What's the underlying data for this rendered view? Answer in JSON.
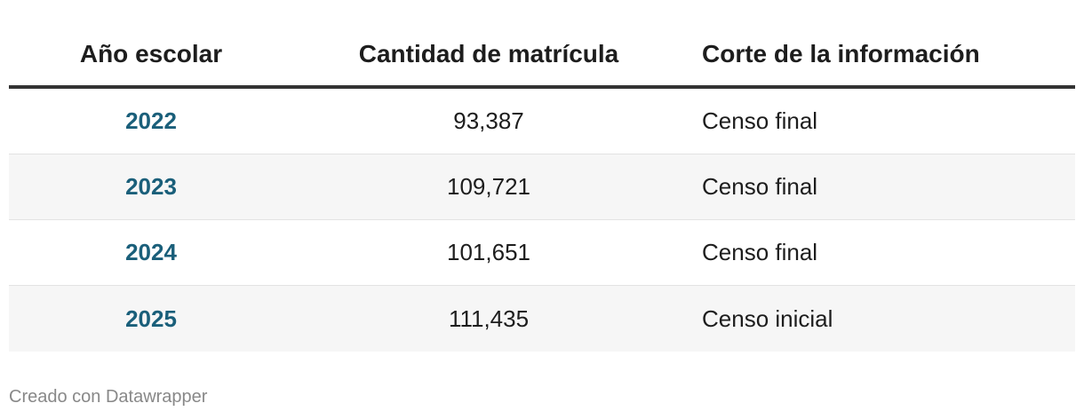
{
  "chart_data": {
    "type": "table",
    "columns": [
      "Año escolar",
      "Cantidad de matrícula",
      "Corte de la información"
    ],
    "rows": [
      {
        "year": "2022",
        "enrollment": "93,387",
        "cutoff": "Censo final"
      },
      {
        "year": "2023",
        "enrollment": "109,721",
        "cutoff": "Censo final"
      },
      {
        "year": "2024",
        "enrollment": "101,651",
        "cutoff": "Censo final"
      },
      {
        "year": "2025",
        "enrollment": "111,435",
        "cutoff": "Censo inicial"
      }
    ]
  },
  "footer": {
    "credit": "Creado con Datawrapper"
  },
  "colors": {
    "year_text": "#1a5f7a",
    "header_rule": "#333333",
    "alt_row": "#f6f6f6"
  }
}
